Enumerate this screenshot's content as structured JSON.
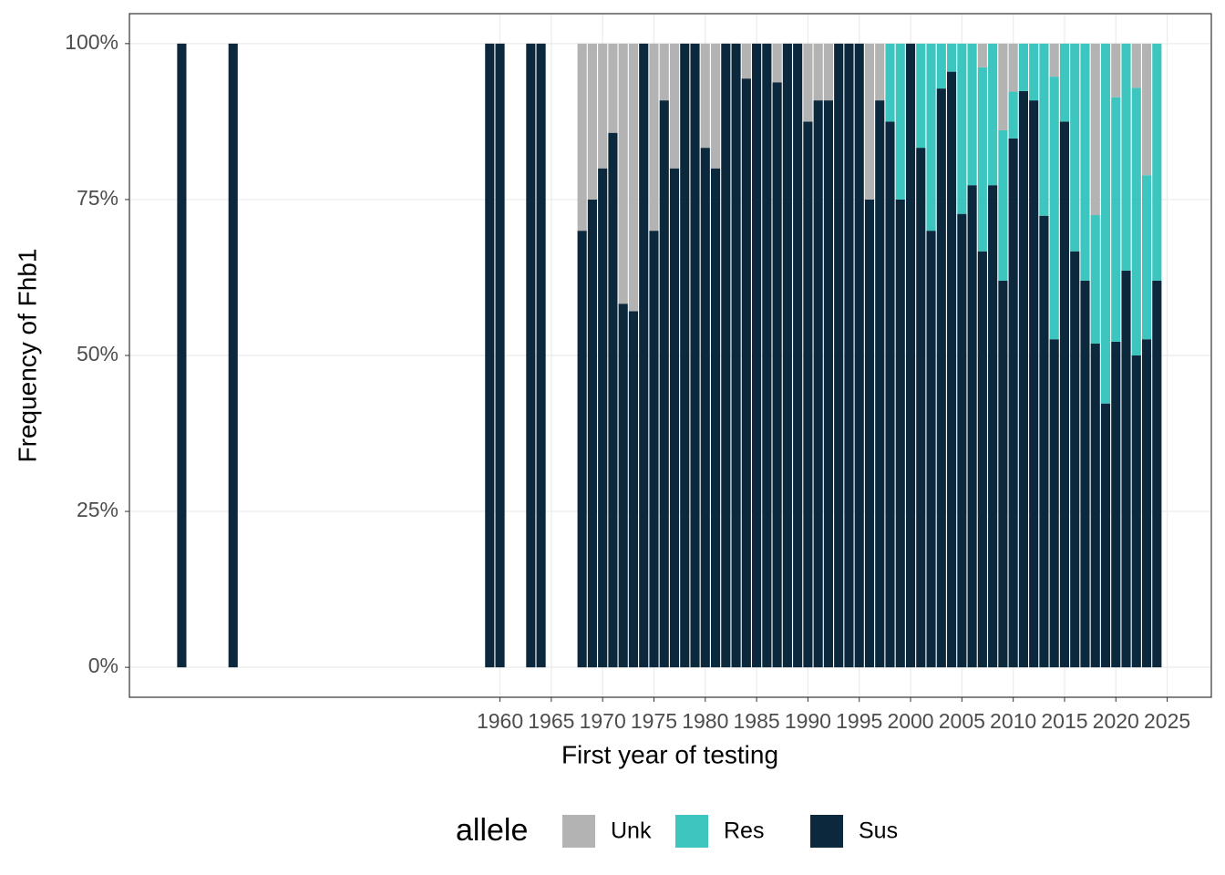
{
  "chart_data": {
    "type": "bar",
    "stacked": true,
    "x_label": "First year of testing",
    "y_label": "Frequency of Fhb1",
    "legend_title": "allele",
    "x": [
      1929,
      1934,
      1959,
      1960,
      1963,
      1964,
      1968,
      1969,
      1970,
      1971,
      1972,
      1973,
      1974,
      1975,
      1976,
      1977,
      1978,
      1979,
      1980,
      1981,
      1982,
      1983,
      1984,
      1985,
      1986,
      1987,
      1988,
      1989,
      1990,
      1991,
      1992,
      1993,
      1994,
      1995,
      1996,
      1997,
      1998,
      1999,
      2000,
      2001,
      2002,
      2003,
      2004,
      2005,
      2006,
      2007,
      2008,
      2009,
      2010,
      2011,
      2012,
      2013,
      2014,
      2015,
      2016,
      2017,
      2018,
      2019,
      2020,
      2021,
      2022,
      2023,
      2024
    ],
    "series": [
      {
        "name": "Unk",
        "color": "#b3b3b3",
        "values": [
          0,
          0,
          0,
          0,
          0,
          0,
          30,
          25,
          20,
          14.3,
          41.7,
          42.9,
          0,
          30,
          9.1,
          20,
          0,
          0,
          16.7,
          20,
          0,
          0,
          5.6,
          0,
          0,
          6.2,
          0,
          0,
          12.5,
          9.1,
          9.1,
          0,
          0,
          0,
          25,
          9.1,
          0,
          0,
          0,
          0,
          0,
          0,
          0,
          0,
          0,
          3.8,
          0,
          13.9,
          7.7,
          0,
          0,
          0,
          5.3,
          0,
          0,
          0,
          27.5,
          0,
          8.6,
          0,
          7.1,
          21.1,
          0
        ]
      },
      {
        "name": "Res",
        "color": "#3cc6bf",
        "values": [
          0,
          0,
          0,
          0,
          0,
          0,
          0,
          0,
          0,
          0,
          0,
          0,
          0,
          0,
          0,
          0,
          0,
          0,
          0,
          0,
          0,
          0,
          0,
          0,
          0,
          0,
          0,
          0,
          0,
          0,
          0,
          0,
          0,
          0,
          0,
          0,
          12.5,
          25,
          0,
          16.7,
          30,
          7.2,
          4.5,
          27.3,
          22.7,
          29.5,
          22.7,
          24.1,
          7.5,
          7.6,
          9.1,
          27.6,
          42.1,
          12.5,
          33.3,
          38,
          20.6,
          57.7,
          39.2,
          36.4,
          42.9,
          26.3,
          38
        ]
      },
      {
        "name": "Sus",
        "color": "#0c283d",
        "values": [
          100,
          100,
          100,
          100,
          100,
          100,
          70,
          75,
          80,
          85.7,
          58.3,
          57.1,
          100,
          70,
          90.9,
          80,
          100,
          100,
          83.3,
          80,
          100,
          100,
          94.4,
          100,
          100,
          93.8,
          100,
          100,
          87.5,
          90.9,
          90.9,
          100,
          100,
          100,
          75,
          90.9,
          87.5,
          75,
          100,
          83.3,
          70,
          92.8,
          95.5,
          72.7,
          77.3,
          66.7,
          77.3,
          62,
          84.8,
          92.4,
          90.9,
          72.4,
          52.6,
          87.5,
          66.7,
          62,
          51.9,
          42.3,
          52.2,
          63.6,
          50,
          52.6,
          62
        ]
      }
    ],
    "xlim": [
      1923.9,
      2029.3
    ],
    "xticks": [
      1960,
      1965,
      1970,
      1975,
      1980,
      1985,
      1990,
      1995,
      2000,
      2005,
      2010,
      2015,
      2020,
      2025
    ],
    "ylim": [
      -4.8,
      104.8
    ],
    "yticks": [
      {
        "value": 0,
        "label": "0%"
      },
      {
        "value": 25,
        "label": "25%"
      },
      {
        "value": 50,
        "label": "50%"
      },
      {
        "value": 75,
        "label": "75%"
      },
      {
        "value": 100,
        "label": "100%"
      }
    ],
    "grid": true,
    "legend_position": "bottom"
  }
}
